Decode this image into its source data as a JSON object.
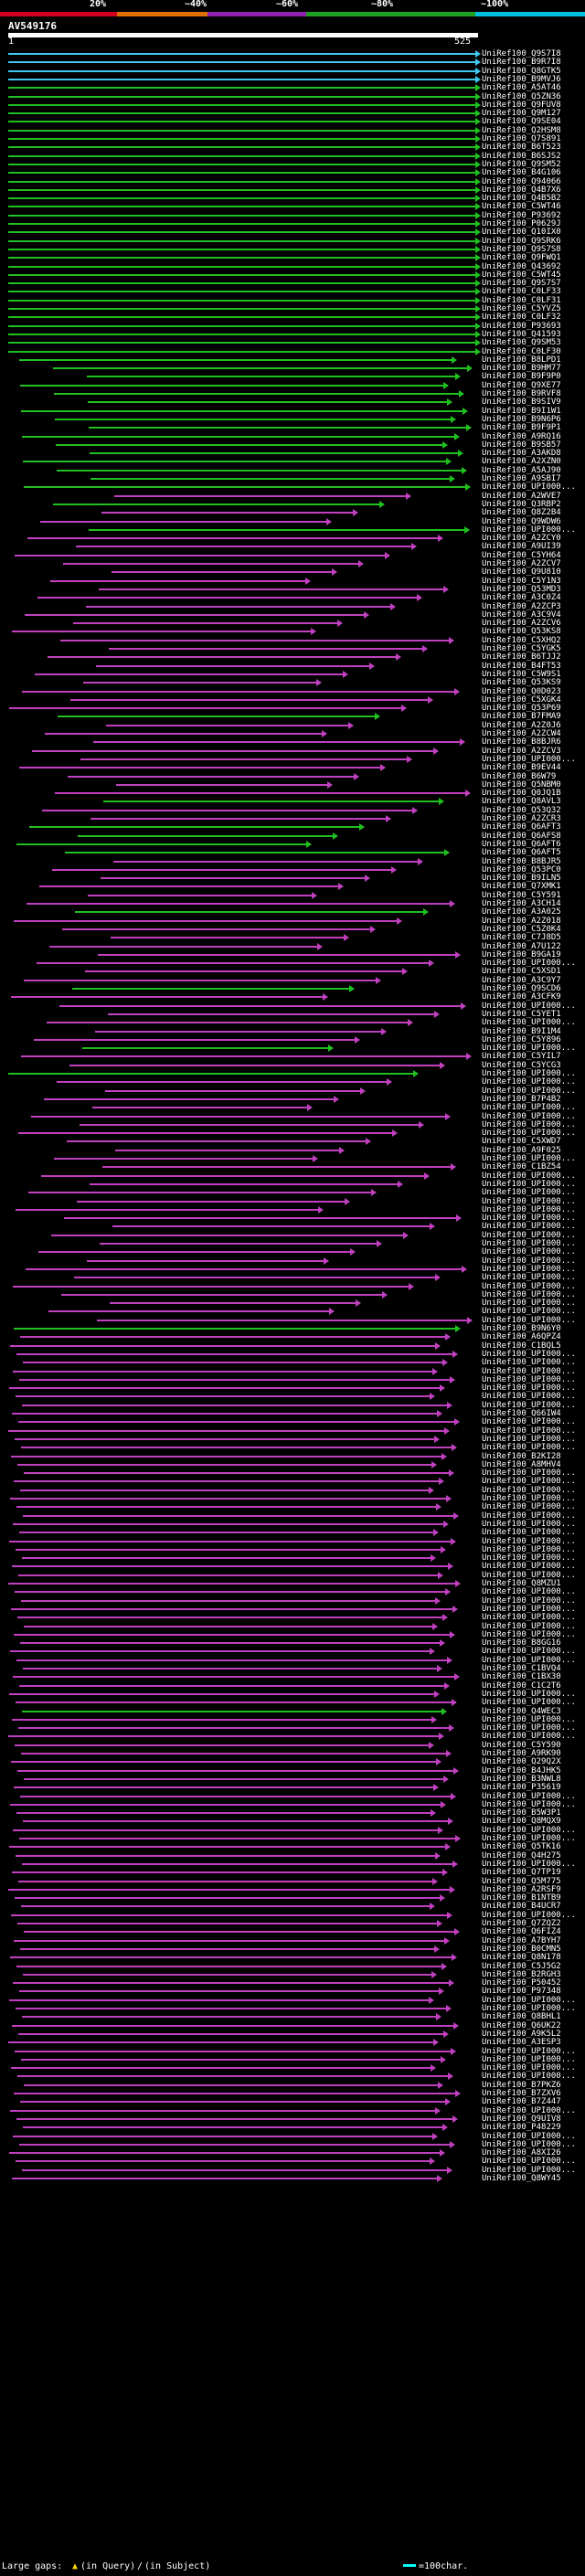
{
  "scale": {
    "labels": [
      "20%",
      "~40%",
      "~60%",
      "~80%",
      "~100%"
    ],
    "band_colors": [
      "#d00020",
      "#e07000",
      "#9020b0",
      "#20a020",
      "#00c0e0"
    ]
  },
  "query": {
    "name": "AV549176",
    "start": "1",
    "end": "525"
  },
  "colors": {
    "cyan": "#40c8f0",
    "green": "#20c020",
    "magenta": "#c040c0"
  },
  "hits": [
    {
      "label": "UniRef100_Q9S7I8",
      "color": "cyan"
    },
    {
      "label": "UniRef100_B9R7I8",
      "color": "cyan"
    },
    {
      "label": "UniRef100_Q8GTK5",
      "color": "cyan"
    },
    {
      "label": "UniRef100_B9MVJ6",
      "color": "cyan"
    },
    {
      "label": "UniRef100_A5AT46",
      "color": "green"
    },
    {
      "label": "UniRef100_Q5ZN36",
      "color": "green"
    },
    {
      "label": "UniRef100_Q9FUV8",
      "color": "green"
    },
    {
      "label": "UniRef100_Q9M127",
      "color": "green"
    },
    {
      "label": "UniRef100_Q9SE04",
      "color": "green"
    },
    {
      "label": "UniRef100_Q2HSM8",
      "color": "green"
    },
    {
      "label": "UniRef100_Q7S891",
      "color": "green"
    },
    {
      "label": "UniRef100_B6T523",
      "color": "green"
    },
    {
      "label": "UniRef100_B6SJS2",
      "color": "green"
    },
    {
      "label": "UniRef100_Q9SM52",
      "color": "green"
    },
    {
      "label": "UniRef100_B4G106",
      "color": "green"
    },
    {
      "label": "UniRef100_Q94066",
      "color": "green"
    },
    {
      "label": "UniRef100_Q4B7X6",
      "color": "green"
    },
    {
      "label": "UniRef100_Q4B5B2",
      "color": "green"
    },
    {
      "label": "UniRef100_C5WT46",
      "color": "green"
    },
    {
      "label": "UniRef100_P93692",
      "color": "green"
    },
    {
      "label": "UniRef100_P0629J",
      "color": "green"
    },
    {
      "label": "UniRef100_Q10IX0",
      "color": "green"
    },
    {
      "label": "UniRef100_Q9SRK6",
      "color": "green"
    },
    {
      "label": "UniRef100_Q9S7S8",
      "color": "green"
    },
    {
      "label": "UniRef100_Q9FWQ1",
      "color": "green"
    },
    {
      "label": "UniRef100_Q43692",
      "color": "green"
    },
    {
      "label": "UniRef100_C5WT45",
      "color": "green"
    },
    {
      "label": "UniRef100_Q9S7S7",
      "color": "green"
    },
    {
      "label": "UniRef100_C0LF33",
      "color": "green"
    },
    {
      "label": "UniRef100_C0LF31",
      "color": "green"
    },
    {
      "label": "UniRef100_C5YVZ5",
      "color": "green"
    },
    {
      "label": "UniRef100_C0LF32",
      "color": "green"
    },
    {
      "label": "UniRef100_P93693",
      "color": "green"
    },
    {
      "label": "UniRef100_Q41593",
      "color": "green"
    },
    {
      "label": "UniRef100_Q9SM53",
      "color": "green"
    },
    {
      "label": "UniRef100_C0LF30",
      "color": "green"
    },
    {
      "label": "UniRef100_B8LPD1",
      "color": "green"
    },
    {
      "label": "UniRef100_B9HM77",
      "color": "green"
    },
    {
      "label": "UniRef100_B9F9P0",
      "color": "green"
    },
    {
      "label": "UniRef100_Q9XE77",
      "color": "green"
    },
    {
      "label": "UniRef100_B9RVF8",
      "color": "green"
    },
    {
      "label": "UniRef100_B9SIV9",
      "color": "green"
    },
    {
      "label": "UniRef100_B9I1W1",
      "color": "green"
    },
    {
      "label": "UniRef100_B9N6P6",
      "color": "green"
    },
    {
      "label": "UniRef100_B9F9P1",
      "color": "green"
    },
    {
      "label": "UniRef100_A9RQ16",
      "color": "green"
    },
    {
      "label": "UniRef100_B9SB57",
      "color": "green"
    },
    {
      "label": "UniRef100_A3AKD8",
      "color": "green"
    },
    {
      "label": "UniRef100_A2XZN0",
      "color": "green"
    },
    {
      "label": "UniRef100_A5AJ90",
      "color": "green"
    },
    {
      "label": "UniRef100_A9SBI7",
      "color": "green"
    },
    {
      "label": "UniRef100_UPI000...",
      "color": "green"
    },
    {
      "label": "UniRef100_A2WVE7",
      "color": "magenta"
    },
    {
      "label": "UniRef100_Q3RBP2",
      "color": "green"
    },
    {
      "label": "UniRef100_Q8Z2B4",
      "color": "magenta"
    },
    {
      "label": "UniRef100_Q9WDW6",
      "color": "magenta"
    },
    {
      "label": "UniRef100_UPI000...",
      "color": "green"
    },
    {
      "label": "UniRef100_A2ZCY0",
      "color": "magenta"
    },
    {
      "label": "UniRef100_A9UI39",
      "color": "magenta"
    },
    {
      "label": "UniRef100_C5YH64",
      "color": "magenta"
    },
    {
      "label": "UniRef100_A2ZCV7",
      "color": "magenta"
    },
    {
      "label": "UniRef100_Q9U810",
      "color": "magenta"
    },
    {
      "label": "UniRef100_C5Y1N3",
      "color": "magenta"
    },
    {
      "label": "UniRef100_Q53MD3",
      "color": "magenta"
    },
    {
      "label": "UniRef100_A3C0Z4",
      "color": "magenta"
    },
    {
      "label": "UniRef100_A2ZCP3",
      "color": "magenta"
    },
    {
      "label": "UniRef100_A3C9V4",
      "color": "magenta"
    },
    {
      "label": "UniRef100_A2ZCV6",
      "color": "magenta"
    },
    {
      "label": "UniRef100_Q53KS8",
      "color": "magenta"
    },
    {
      "label": "UniRef100_C5XHQ2",
      "color": "magenta"
    },
    {
      "label": "UniRef100_C5YGK5",
      "color": "magenta"
    },
    {
      "label": "UniRef100_B6TJJ2",
      "color": "magenta"
    },
    {
      "label": "UniRef100_B4FT53",
      "color": "magenta"
    },
    {
      "label": "UniRef100_C5W9S1",
      "color": "magenta"
    },
    {
      "label": "UniRef100_Q53KS9",
      "color": "magenta"
    },
    {
      "label": "UniRef100_Q0D023",
      "color": "magenta"
    },
    {
      "label": "UniRef100_C5XGK4",
      "color": "magenta"
    },
    {
      "label": "UniRef100_Q53P69",
      "color": "magenta"
    },
    {
      "label": "UniRef100_B7FMA9",
      "color": "green"
    },
    {
      "label": "UniRef100_A2Z0J6",
      "color": "magenta"
    },
    {
      "label": "UniRef100_A2ZCW4",
      "color": "magenta"
    },
    {
      "label": "UniRef100_B8BJR6",
      "color": "magenta"
    },
    {
      "label": "UniRef100_A2ZCV3",
      "color": "magenta"
    },
    {
      "label": "UniRef100_UPI000...",
      "color": "magenta"
    },
    {
      "label": "UniRef100_B9EV44",
      "color": "magenta"
    },
    {
      "label": "UniRef100_B6W79",
      "color": "magenta"
    },
    {
      "label": "UniRef100_Q5NBM0",
      "color": "magenta"
    },
    {
      "label": "UniRef100_Q0JQ1B",
      "color": "magenta"
    },
    {
      "label": "UniRef100_Q8AVL3",
      "color": "green"
    },
    {
      "label": "UniRef100_Q53Q32",
      "color": "magenta"
    },
    {
      "label": "UniRef100_A2ZCR3",
      "color": "magenta"
    },
    {
      "label": "UniRef100_Q6AFT3",
      "color": "green"
    },
    {
      "label": "UniRef100_Q6AFS8",
      "color": "green"
    },
    {
      "label": "UniRef100_Q6AFT6",
      "color": "green"
    },
    {
      "label": "UniRef100_Q6AFT5",
      "color": "green"
    },
    {
      "label": "UniRef100_B8BJR5",
      "color": "magenta"
    },
    {
      "label": "UniRef100_Q53PC0",
      "color": "magenta"
    },
    {
      "label": "UniRef100_B9ILN5",
      "color": "magenta"
    },
    {
      "label": "UniRef100_Q7XMK1",
      "color": "magenta"
    },
    {
      "label": "UniRef100_C5Y591",
      "color": "magenta"
    },
    {
      "label": "UniRef100_A3CH14",
      "color": "magenta"
    },
    {
      "label": "UniRef100_A3A025",
      "color": "green"
    },
    {
      "label": "UniRef100_A2Z018",
      "color": "magenta"
    },
    {
      "label": "UniRef100_C5Z0K4",
      "color": "magenta"
    },
    {
      "label": "UniRef100_C7J8D5",
      "color": "magenta"
    },
    {
      "label": "UniRef100_A7U122",
      "color": "magenta"
    },
    {
      "label": "UniRef100_B9GA19",
      "color": "magenta"
    },
    {
      "label": "UniRef100_UPI000...",
      "color": "magenta"
    },
    {
      "label": "UniRef100_C5XSD1",
      "color": "magenta"
    },
    {
      "label": "UniRef100_A3C9Y7",
      "color": "magenta"
    },
    {
      "label": "UniRef100_Q9SCD6",
      "color": "green"
    },
    {
      "label": "UniRef100_A3CFK9",
      "color": "magenta"
    },
    {
      "label": "UniRef100_UPI000...",
      "color": "magenta"
    },
    {
      "label": "UniRef100_C5YET1",
      "color": "magenta"
    },
    {
      "label": "UniRef100_UPI000...",
      "color": "magenta"
    },
    {
      "label": "UniRef100_B9I1M4",
      "color": "magenta"
    },
    {
      "label": "UniRef100_C5Y896",
      "color": "magenta"
    },
    {
      "label": "UniRef100_UPI000...",
      "color": "green"
    },
    {
      "label": "UniRef100_C5YIL7",
      "color": "magenta"
    },
    {
      "label": "UniRef100_C5YCG3",
      "color": "magenta"
    },
    {
      "label": "UniRef100_UPI000...",
      "color": "green"
    },
    {
      "label": "UniRef100_UPI000...",
      "color": "magenta"
    },
    {
      "label": "UniRef100_UPI000...",
      "color": "magenta"
    },
    {
      "label": "UniRef100_B7P4B2",
      "color": "magenta"
    },
    {
      "label": "UniRef100_UPI000...",
      "color": "magenta"
    },
    {
      "label": "UniRef100_UPI000...",
      "color": "magenta"
    },
    {
      "label": "UniRef100_UPI000...",
      "color": "magenta"
    },
    {
      "label": "UniRef100_UPI000...",
      "color": "magenta"
    },
    {
      "label": "UniRef100_C5XWD7",
      "color": "magenta"
    },
    {
      "label": "UniRef100_A9F025",
      "color": "magenta"
    },
    {
      "label": "UniRef100_UPI000...",
      "color": "magenta"
    },
    {
      "label": "UniRef100_C1BZ54",
      "color": "magenta"
    },
    {
      "label": "UniRef100_UPI000...",
      "color": "magenta"
    },
    {
      "label": "UniRef100_UPI000...",
      "color": "magenta"
    },
    {
      "label": "UniRef100_UPI000...",
      "color": "magenta"
    },
    {
      "label": "UniRef100_UPI000...",
      "color": "magenta"
    },
    {
      "label": "UniRef100_UPI000...",
      "color": "magenta"
    },
    {
      "label": "UniRef100_UPI000...",
      "color": "magenta"
    },
    {
      "label": "UniRef100_UPI000...",
      "color": "magenta"
    },
    {
      "label": "UniRef100_UPI000...",
      "color": "magenta"
    },
    {
      "label": "UniRef100_UPI000...",
      "color": "magenta"
    },
    {
      "label": "UniRef100_UPI000...",
      "color": "magenta"
    },
    {
      "label": "UniRef100_UPI000...",
      "color": "magenta"
    },
    {
      "label": "UniRef100_UPI000...",
      "color": "magenta"
    },
    {
      "label": "UniRef100_UPI000...",
      "color": "magenta"
    },
    {
      "label": "UniRef100_UPI000...",
      "color": "magenta"
    },
    {
      "label": "UniRef100_UPI000...",
      "color": "magenta"
    },
    {
      "label": "UniRef100_UPI000...",
      "color": "magenta"
    },
    {
      "label": "UniRef100_UPI000...",
      "color": "magenta"
    },
    {
      "label": "UniRef100_UPI000...",
      "color": "magenta"
    },
    {
      "label": "UniRef100_B9N6Y0",
      "color": "green"
    },
    {
      "label": "UniRef100_A6QPZ4",
      "color": "magenta"
    },
    {
      "label": "UniRef100_C1BQL5",
      "color": "magenta"
    },
    {
      "label": "UniRef100_UPI000...",
      "color": "magenta"
    },
    {
      "label": "UniRef100_UPI000...",
      "color": "magenta"
    },
    {
      "label": "UniRef100_UPI000...",
      "color": "magenta"
    },
    {
      "label": "UniRef100_UPI000...",
      "color": "magenta"
    },
    {
      "label": "UniRef100_UPI000...",
      "color": "magenta"
    },
    {
      "label": "UniRef100_UPI000...",
      "color": "magenta"
    },
    {
      "label": "UniRef100_UPI000...",
      "color": "magenta"
    },
    {
      "label": "UniRef100_Q66IW4",
      "color": "magenta"
    },
    {
      "label": "UniRef100_UPI000...",
      "color": "magenta"
    },
    {
      "label": "UniRef100_UPI000...",
      "color": "magenta"
    },
    {
      "label": "UniRef100_UPI000...",
      "color": "magenta"
    },
    {
      "label": "UniRef100_UPI000...",
      "color": "magenta"
    },
    {
      "label": "UniRef100_B2KI28",
      "color": "magenta"
    },
    {
      "label": "UniRef100_A8MHV4",
      "color": "magenta"
    },
    {
      "label": "UniRef100_UPI000...",
      "color": "magenta"
    },
    {
      "label": "UniRef100_UPI000...",
      "color": "magenta"
    },
    {
      "label": "UniRef100_UPI000...",
      "color": "magenta"
    },
    {
      "label": "UniRef100_UPI000...",
      "color": "magenta"
    },
    {
      "label": "UniRef100_UPI000...",
      "color": "magenta"
    },
    {
      "label": "UniRef100_UPI000...",
      "color": "magenta"
    },
    {
      "label": "UniRef100_UPI000...",
      "color": "magenta"
    },
    {
      "label": "UniRef100_UPI000...",
      "color": "magenta"
    },
    {
      "label": "UniRef100_UPI000...",
      "color": "magenta"
    },
    {
      "label": "UniRef100_UPI000...",
      "color": "magenta"
    },
    {
      "label": "UniRef100_UPI000...",
      "color": "magenta"
    },
    {
      "label": "UniRef100_UPI000...",
      "color": "magenta"
    },
    {
      "label": "UniRef100_UPI000...",
      "color": "magenta"
    },
    {
      "label": "UniRef100_Q8MZU1",
      "color": "magenta"
    },
    {
      "label": "UniRef100_UPI000...",
      "color": "magenta"
    },
    {
      "label": "UniRef100_UPI000...",
      "color": "magenta"
    },
    {
      "label": "UniRef100_UPI000...",
      "color": "magenta"
    },
    {
      "label": "UniRef100_UPI000...",
      "color": "magenta"
    },
    {
      "label": "UniRef100_UPI000...",
      "color": "magenta"
    },
    {
      "label": "UniRef100_UPI000...",
      "color": "magenta"
    },
    {
      "label": "UniRef100_B8GG16",
      "color": "magenta"
    },
    {
      "label": "UniRef100_UPI000...",
      "color": "magenta"
    },
    {
      "label": "UniRef100_UPI000...",
      "color": "magenta"
    },
    {
      "label": "UniRef100_C1BVQ4",
      "color": "magenta"
    },
    {
      "label": "UniRef100_C1BX30",
      "color": "magenta"
    },
    {
      "label": "UniRef100_C1C2T6",
      "color": "magenta"
    },
    {
      "label": "UniRef100_UPI000...",
      "color": "magenta"
    },
    {
      "label": "UniRef100_UPI000...",
      "color": "magenta"
    },
    {
      "label": "UniRef100_Q4WEC3",
      "color": "green"
    },
    {
      "label": "UniRef100_UPI000...",
      "color": "magenta"
    },
    {
      "label": "UniRef100_UPI000...",
      "color": "magenta"
    },
    {
      "label": "UniRef100_UPI000...",
      "color": "magenta"
    },
    {
      "label": "UniRef100_C5Y590",
      "color": "magenta"
    },
    {
      "label": "UniRef100_A9RK90",
      "color": "magenta"
    },
    {
      "label": "UniRef100_Q29Q2X",
      "color": "magenta"
    },
    {
      "label": "UniRef100_B4JHK5",
      "color": "magenta"
    },
    {
      "label": "UniRef100_B3NWL8",
      "color": "magenta"
    },
    {
      "label": "UniRef100_P35619",
      "color": "magenta"
    },
    {
      "label": "UniRef100_UPI000...",
      "color": "magenta"
    },
    {
      "label": "UniRef100_UPI000...",
      "color": "magenta"
    },
    {
      "label": "UniRef100_B5W3P1",
      "color": "magenta"
    },
    {
      "label": "UniRef100_Q8MQX9",
      "color": "magenta"
    },
    {
      "label": "UniRef100_UPI000...",
      "color": "magenta"
    },
    {
      "label": "UniRef100_UPI000...",
      "color": "magenta"
    },
    {
      "label": "UniRef100_Q5TK16",
      "color": "magenta"
    },
    {
      "label": "UniRef100_Q4H275",
      "color": "magenta"
    },
    {
      "label": "UniRef100_UPI000...",
      "color": "magenta"
    },
    {
      "label": "UniRef100_Q7TP19",
      "color": "magenta"
    },
    {
      "label": "UniRef100_Q5M775",
      "color": "magenta"
    },
    {
      "label": "UniRef100_A2RSF9",
      "color": "magenta"
    },
    {
      "label": "UniRef100_B1NTB9",
      "color": "magenta"
    },
    {
      "label": "UniRef100_B4UCR7",
      "color": "magenta"
    },
    {
      "label": "UniRef100_UPI000...",
      "color": "magenta"
    },
    {
      "label": "UniRef100_Q7ZQZ2",
      "color": "magenta"
    },
    {
      "label": "UniRef100_Q6FIZ4",
      "color": "magenta"
    },
    {
      "label": "UniRef100_A7BYH7",
      "color": "magenta"
    },
    {
      "label": "UniRef100_B0CMN5",
      "color": "magenta"
    },
    {
      "label": "UniRef100_Q8N178",
      "color": "magenta"
    },
    {
      "label": "UniRef100_C5J5G2",
      "color": "magenta"
    },
    {
      "label": "UniRef100_B2RGH3",
      "color": "magenta"
    },
    {
      "label": "UniRef100_P50452",
      "color": "magenta"
    },
    {
      "label": "UniRef100_P97348",
      "color": "magenta"
    },
    {
      "label": "UniRef100_UPI000...",
      "color": "magenta"
    },
    {
      "label": "UniRef100_UPI000...",
      "color": "magenta"
    },
    {
      "label": "UniRef100_Q8BHL1",
      "color": "magenta"
    },
    {
      "label": "UniRef100_Q6UK22",
      "color": "magenta"
    },
    {
      "label": "UniRef100_A9K5L2",
      "color": "magenta"
    },
    {
      "label": "UniRef100_A3ESP3",
      "color": "magenta"
    },
    {
      "label": "UniRef100_UPI000...",
      "color": "magenta"
    },
    {
      "label": "UniRef100_UPI000...",
      "color": "magenta"
    },
    {
      "label": "UniRef100_UPI000...",
      "color": "magenta"
    },
    {
      "label": "UniRef100_UPI000...",
      "color": "magenta"
    },
    {
      "label": "UniRef100_B7PKZ6",
      "color": "magenta"
    },
    {
      "label": "UniRef100_B7ZXV6",
      "color": "magenta"
    },
    {
      "label": "UniRef100_B7Z447",
      "color": "magenta"
    },
    {
      "label": "UniRef100_UPI000...",
      "color": "magenta"
    },
    {
      "label": "UniRef100_Q9UIV8",
      "color": "magenta"
    },
    {
      "label": "UniRef100_P48229",
      "color": "magenta"
    },
    {
      "label": "UniRef100_UPI000...",
      "color": "magenta"
    },
    {
      "label": "UniRef100_UPI000...",
      "color": "magenta"
    },
    {
      "label": "UniRef100_A8XI26",
      "color": "magenta"
    },
    {
      "label": "UniRef100_UPI000...",
      "color": "magenta"
    },
    {
      "label": "UniRef100_UPI000...",
      "color": "magenta"
    },
    {
      "label": "UniRef100_Q8WY45",
      "color": "magenta"
    }
  ],
  "footer": {
    "large_gaps": "Large gaps:",
    "query_gap_symbol": "▲",
    "query_gap_text": "(in Query)",
    "subject_gap_symbol": "/",
    "subject_gap_text": "(in Subject)",
    "scale_text": "=100char."
  }
}
